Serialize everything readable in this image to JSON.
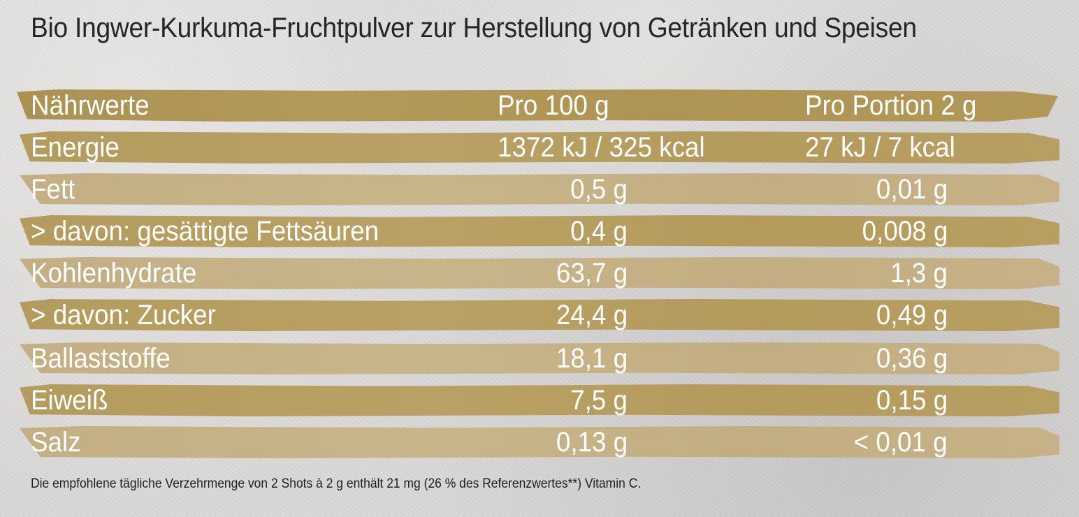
{
  "title": "Bio Ingwer-Kurkuma-Fruchtpulver zur Herstellung von Getränken und Speisen",
  "table": {
    "header": {
      "label": "Nährwerte",
      "per_100g": "Pro 100 g",
      "per_portion": "Pro Portion 2 g"
    },
    "rows": [
      {
        "label": "Energie",
        "per_100g": "1372 kJ / 325 kcal",
        "per_portion": "27 kJ / 7 kcal"
      },
      {
        "label": "Fett",
        "per_100g": "0,5 g",
        "per_portion": "0,01 g"
      },
      {
        "label": "> davon: gesättigte Fettsäuren",
        "per_100g": "0,4 g",
        "per_portion": "0,008 g"
      },
      {
        "label": "Kohlenhydrate",
        "per_100g": "63,7 g",
        "per_portion": "1,3 g"
      },
      {
        "label": "> davon: Zucker",
        "per_100g": "24,4 g",
        "per_portion": "0,49 g"
      },
      {
        "label": "Ballaststoffe",
        "per_100g": "18,1 g",
        "per_portion": "0,36 g"
      },
      {
        "label": "Eiweiß",
        "per_100g": "7,5 g",
        "per_portion": "0,15 g"
      },
      {
        "label": "Salz",
        "per_100g": "0,13 g",
        "per_portion": "< 0,01 g"
      }
    ]
  },
  "footnote": "Die empfohlene tägliche Verzehrmenge von 2 Shots à 2 g enthält 21 mg (26 % des Referenzwertes**) Vitamin C."
}
